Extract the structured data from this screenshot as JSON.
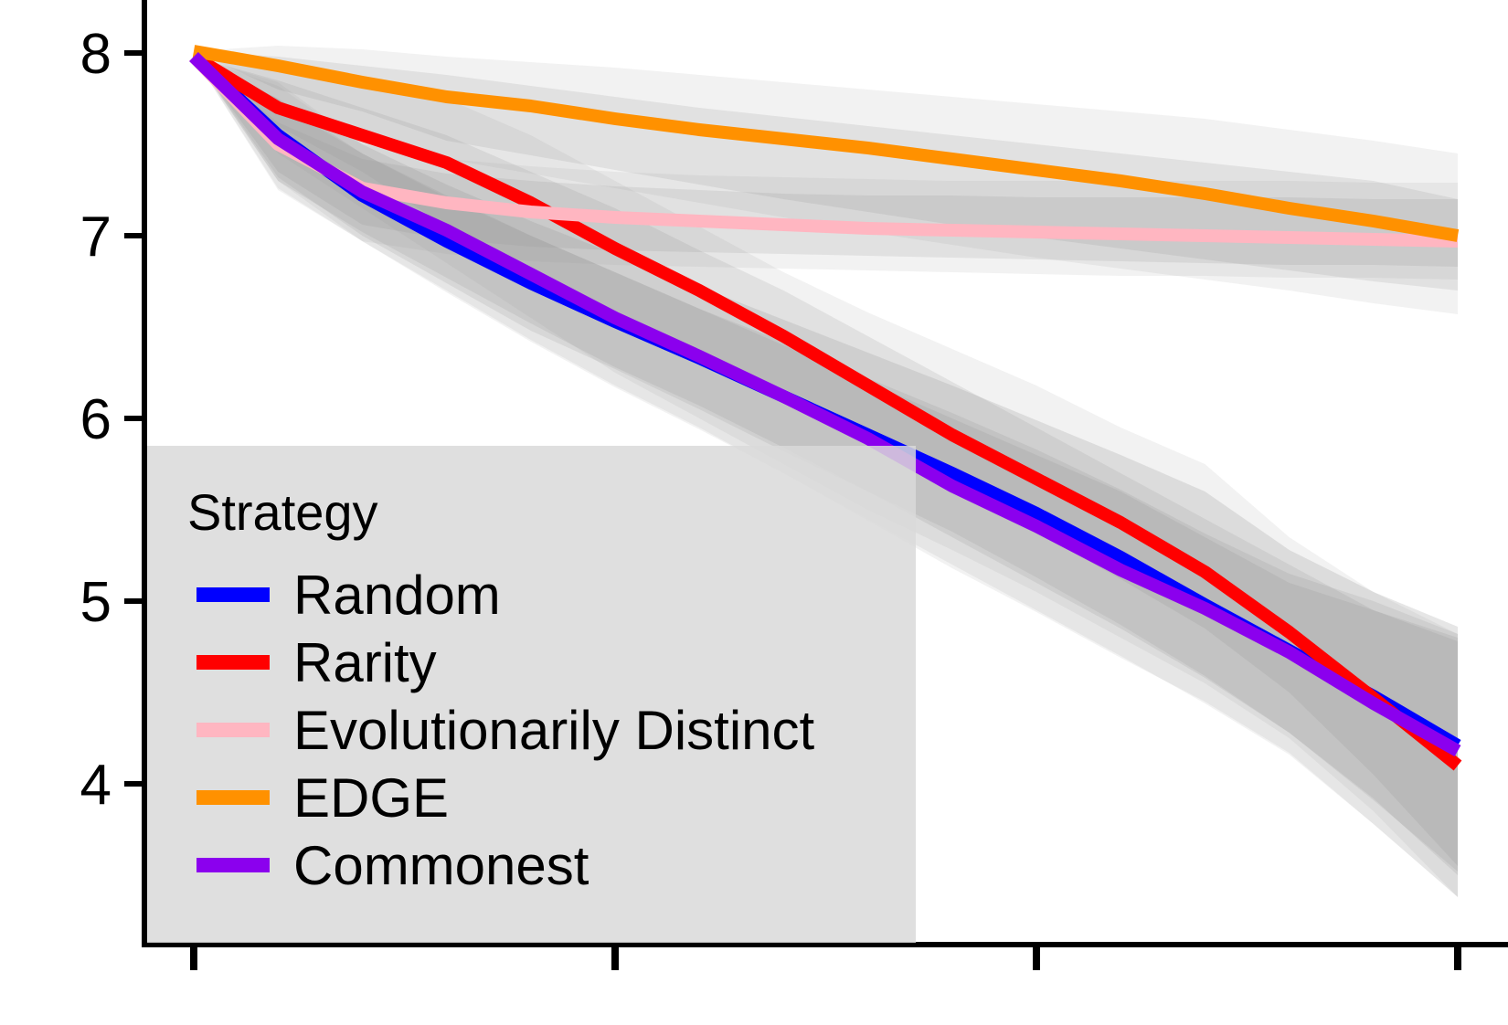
{
  "chart_data": {
    "type": "line",
    "title": "",
    "xlabel": "",
    "ylabel": "",
    "x": [
      0,
      1,
      2,
      3,
      4,
      5,
      6,
      7,
      8,
      9,
      10,
      11,
      12,
      13,
      14,
      15
    ],
    "ylim": [
      3.25,
      8.3
    ],
    "y_ticks": [
      "4",
      "5",
      "6",
      "7",
      "8"
    ],
    "x_tick_count": 4,
    "grid": false,
    "legend": {
      "title": "Strategy",
      "position": "bottom-left"
    },
    "series": [
      {
        "name": "Random",
        "color": "#0000ff",
        "values": [
          7.98,
          7.55,
          7.22,
          6.97,
          6.74,
          6.53,
          6.33,
          6.12,
          5.91,
          5.7,
          5.48,
          5.24,
          4.98,
          4.73,
          4.48,
          4.21
        ],
        "band_inner": [
          [
            7.98,
            7.98
          ],
          [
            7.32,
            7.75
          ],
          [
            7.0,
            7.45
          ],
          [
            6.74,
            7.21
          ],
          [
            6.48,
            7.0
          ],
          [
            6.27,
            6.8
          ],
          [
            6.05,
            6.6
          ],
          [
            5.82,
            6.42
          ],
          [
            5.6,
            6.22
          ],
          [
            5.38,
            6.03
          ],
          [
            5.13,
            5.83
          ],
          [
            4.87,
            5.61
          ],
          [
            4.59,
            5.37
          ],
          [
            4.28,
            5.15
          ],
          [
            3.91,
            5.0
          ],
          [
            3.52,
            4.82
          ]
        ],
        "band_outer": [
          [
            7.98,
            7.98
          ],
          [
            7.26,
            7.84
          ],
          [
            6.97,
            7.5
          ],
          [
            6.69,
            7.28
          ],
          [
            6.42,
            7.08
          ],
          [
            6.17,
            6.9
          ],
          [
            5.94,
            6.72
          ],
          [
            5.7,
            6.54
          ],
          [
            5.44,
            6.36
          ],
          [
            5.18,
            6.18
          ],
          [
            4.94,
            5.99
          ],
          [
            4.69,
            5.8
          ],
          [
            4.45,
            5.6
          ],
          [
            4.17,
            5.28
          ],
          [
            3.78,
            5.05
          ],
          [
            3.38,
            4.86
          ]
        ]
      },
      {
        "name": "Rarity",
        "color": "#ff0000",
        "values": [
          7.98,
          7.7,
          7.55,
          7.4,
          7.18,
          6.93,
          6.7,
          6.45,
          6.18,
          5.91,
          5.67,
          5.43,
          5.16,
          4.83,
          4.47,
          4.1
        ],
        "band_inner": [
          [
            7.98,
            7.98
          ],
          [
            7.6,
            7.85
          ],
          [
            7.35,
            7.7
          ],
          [
            7.05,
            7.55
          ],
          [
            6.8,
            7.35
          ],
          [
            6.58,
            7.15
          ],
          [
            6.35,
            6.92
          ],
          [
            6.12,
            6.7
          ],
          [
            5.9,
            6.45
          ],
          [
            5.65,
            6.2
          ],
          [
            5.38,
            5.95
          ],
          [
            5.12,
            5.7
          ],
          [
            4.85,
            5.45
          ],
          [
            4.5,
            5.2
          ],
          [
            4.05,
            4.95
          ],
          [
            3.55,
            4.8
          ]
        ],
        "band_outer": [
          [
            7.98,
            7.98
          ],
          [
            7.45,
            7.95
          ],
          [
            7.15,
            7.85
          ],
          [
            6.85,
            7.75
          ],
          [
            6.55,
            7.55
          ],
          [
            6.25,
            7.3
          ],
          [
            6.0,
            7.05
          ],
          [
            5.75,
            6.8
          ],
          [
            5.5,
            6.58
          ],
          [
            5.28,
            6.38
          ],
          [
            5.05,
            6.18
          ],
          [
            4.8,
            5.95
          ],
          [
            4.55,
            5.75
          ],
          [
            4.25,
            5.35
          ],
          [
            3.85,
            5.05
          ],
          [
            3.38,
            4.82
          ]
        ]
      },
      {
        "name": "Evolutionarily Distinct",
        "color": "#ffb6c1",
        "values": [
          7.98,
          7.5,
          7.26,
          7.18,
          7.13,
          7.1,
          7.08,
          7.06,
          7.04,
          7.03,
          7.02,
          7.01,
          7.0,
          6.99,
          6.98,
          6.97
        ],
        "band_inner": [
          [
            7.98,
            7.98
          ],
          [
            7.35,
            7.62
          ],
          [
            7.06,
            7.42
          ],
          [
            6.98,
            7.34
          ],
          [
            6.94,
            7.3
          ],
          [
            6.92,
            7.27
          ],
          [
            6.91,
            7.25
          ],
          [
            6.9,
            7.23
          ],
          [
            6.89,
            7.22
          ],
          [
            6.88,
            7.22
          ],
          [
            6.87,
            7.21
          ],
          [
            6.86,
            7.21
          ],
          [
            6.85,
            7.21
          ],
          [
            6.84,
            7.21
          ],
          [
            6.84,
            7.2
          ],
          [
            6.83,
            7.2
          ]
        ],
        "band_outer": [
          [
            7.98,
            7.98
          ],
          [
            7.3,
            7.75
          ],
          [
            6.97,
            7.5
          ],
          [
            6.9,
            7.42
          ],
          [
            6.86,
            7.38
          ],
          [
            6.84,
            7.35
          ],
          [
            6.83,
            7.33
          ],
          [
            6.82,
            7.32
          ],
          [
            6.81,
            7.31
          ],
          [
            6.8,
            7.3
          ],
          [
            6.79,
            7.3
          ],
          [
            6.78,
            7.3
          ],
          [
            6.78,
            7.3
          ],
          [
            6.77,
            7.3
          ],
          [
            6.77,
            7.29
          ],
          [
            6.76,
            7.29
          ]
        ]
      },
      {
        "name": "EDGE",
        "color": "#ff9100",
        "values": [
          8.01,
          7.93,
          7.84,
          7.76,
          7.71,
          7.64,
          7.58,
          7.53,
          7.48,
          7.42,
          7.36,
          7.3,
          7.23,
          7.15,
          7.08,
          7.0
        ],
        "band_inner": [
          [
            8.01,
            8.01
          ],
          [
            7.8,
            7.98
          ],
          [
            7.68,
            7.93
          ],
          [
            7.52,
            7.88
          ],
          [
            7.44,
            7.82
          ],
          [
            7.36,
            7.76
          ],
          [
            7.28,
            7.7
          ],
          [
            7.2,
            7.65
          ],
          [
            7.13,
            7.6
          ],
          [
            7.06,
            7.55
          ],
          [
            6.99,
            7.5
          ],
          [
            6.93,
            7.45
          ],
          [
            6.87,
            7.4
          ],
          [
            6.81,
            7.35
          ],
          [
            6.75,
            7.3
          ],
          [
            6.7,
            7.2
          ]
        ],
        "band_outer": [
          [
            8.01,
            8.01
          ],
          [
            7.7,
            8.04
          ],
          [
            7.56,
            8.02
          ],
          [
            7.42,
            7.98
          ],
          [
            7.34,
            7.95
          ],
          [
            7.26,
            7.92
          ],
          [
            7.18,
            7.88
          ],
          [
            7.1,
            7.84
          ],
          [
            7.02,
            7.8
          ],
          [
            6.95,
            7.76
          ],
          [
            6.88,
            7.72
          ],
          [
            6.82,
            7.68
          ],
          [
            6.76,
            7.64
          ],
          [
            6.7,
            7.58
          ],
          [
            6.63,
            7.52
          ],
          [
            6.57,
            7.45
          ]
        ]
      },
      {
        "name": "Commonest",
        "color": "#8b00ee",
        "values": [
          7.98,
          7.53,
          7.24,
          7.03,
          6.79,
          6.55,
          6.34,
          6.12,
          5.89,
          5.63,
          5.41,
          5.17,
          4.96,
          4.72,
          4.44,
          4.18
        ],
        "band_inner": [
          [
            7.98,
            7.98
          ],
          [
            7.3,
            7.72
          ],
          [
            7.02,
            7.45
          ],
          [
            6.77,
            7.22
          ],
          [
            6.52,
            7.0
          ],
          [
            6.28,
            6.8
          ],
          [
            6.07,
            6.6
          ],
          [
            5.84,
            6.4
          ],
          [
            5.6,
            6.2
          ],
          [
            5.35,
            6.0
          ],
          [
            5.1,
            5.8
          ],
          [
            4.85,
            5.6
          ],
          [
            4.58,
            5.35
          ],
          [
            4.28,
            5.1
          ],
          [
            3.92,
            4.95
          ],
          [
            3.5,
            4.78
          ]
        ],
        "band_outer": [
          [
            7.98,
            7.98
          ],
          [
            7.25,
            7.82
          ],
          [
            6.97,
            7.5
          ],
          [
            6.7,
            7.28
          ],
          [
            6.43,
            7.08
          ],
          [
            6.18,
            6.9
          ],
          [
            5.95,
            6.72
          ],
          [
            5.7,
            6.54
          ],
          [
            5.45,
            6.36
          ],
          [
            5.2,
            6.18
          ],
          [
            4.95,
            5.99
          ],
          [
            4.7,
            5.8
          ],
          [
            4.44,
            5.6
          ],
          [
            4.16,
            5.28
          ],
          [
            3.78,
            5.05
          ],
          [
            3.38,
            4.86
          ]
        ]
      }
    ]
  }
}
